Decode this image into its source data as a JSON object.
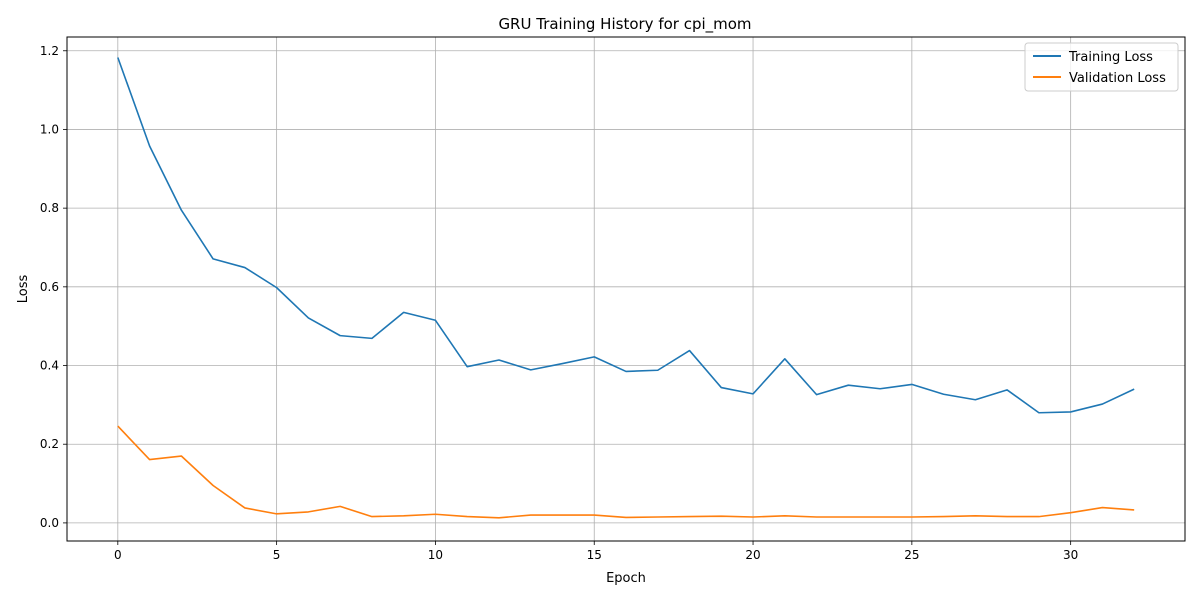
{
  "chart_data": {
    "type": "line",
    "title": "GRU Training History for cpi_mom",
    "xlabel": "Epoch",
    "ylabel": "Loss",
    "xlim": [
      -1.6,
      33.6
    ],
    "ylim": [
      -0.046,
      1.235
    ],
    "xticks": [
      0,
      5,
      10,
      15,
      20,
      25,
      30
    ],
    "yticks": [
      0.0,
      0.2,
      0.4,
      0.6,
      0.8,
      1.0,
      1.2
    ],
    "ytick_labels": [
      "0.0",
      "0.2",
      "0.4",
      "0.6",
      "0.8",
      "1.0",
      "1.2"
    ],
    "grid": true,
    "legend_position": "top-right",
    "x": [
      0,
      1,
      2,
      3,
      4,
      5,
      6,
      7,
      8,
      9,
      10,
      11,
      12,
      13,
      14,
      15,
      16,
      17,
      18,
      19,
      20,
      21,
      22,
      23,
      24,
      25,
      26,
      27,
      28,
      29,
      30,
      31,
      32
    ],
    "series": [
      {
        "name": "Training Loss",
        "color": "#1f77b4",
        "values": [
          1.183,
          0.958,
          0.795,
          0.671,
          0.649,
          0.598,
          0.521,
          0.476,
          0.469,
          0.535,
          0.515,
          0.397,
          0.414,
          0.389,
          0.405,
          0.422,
          0.385,
          0.388,
          0.438,
          0.344,
          0.328,
          0.417,
          0.326,
          0.35,
          0.341,
          0.352,
          0.327,
          0.313,
          0.338,
          0.28,
          0.282,
          0.302,
          0.34
        ]
      },
      {
        "name": "Validation Loss",
        "color": "#ff7f0e",
        "values": [
          0.246,
          0.161,
          0.17,
          0.095,
          0.038,
          0.023,
          0.028,
          0.042,
          0.016,
          0.018,
          0.022,
          0.016,
          0.013,
          0.02,
          0.02,
          0.02,
          0.014,
          0.015,
          0.016,
          0.017,
          0.015,
          0.018,
          0.015,
          0.015,
          0.015,
          0.015,
          0.016,
          0.018,
          0.016,
          0.016,
          0.026,
          0.039,
          0.033
        ]
      }
    ]
  }
}
